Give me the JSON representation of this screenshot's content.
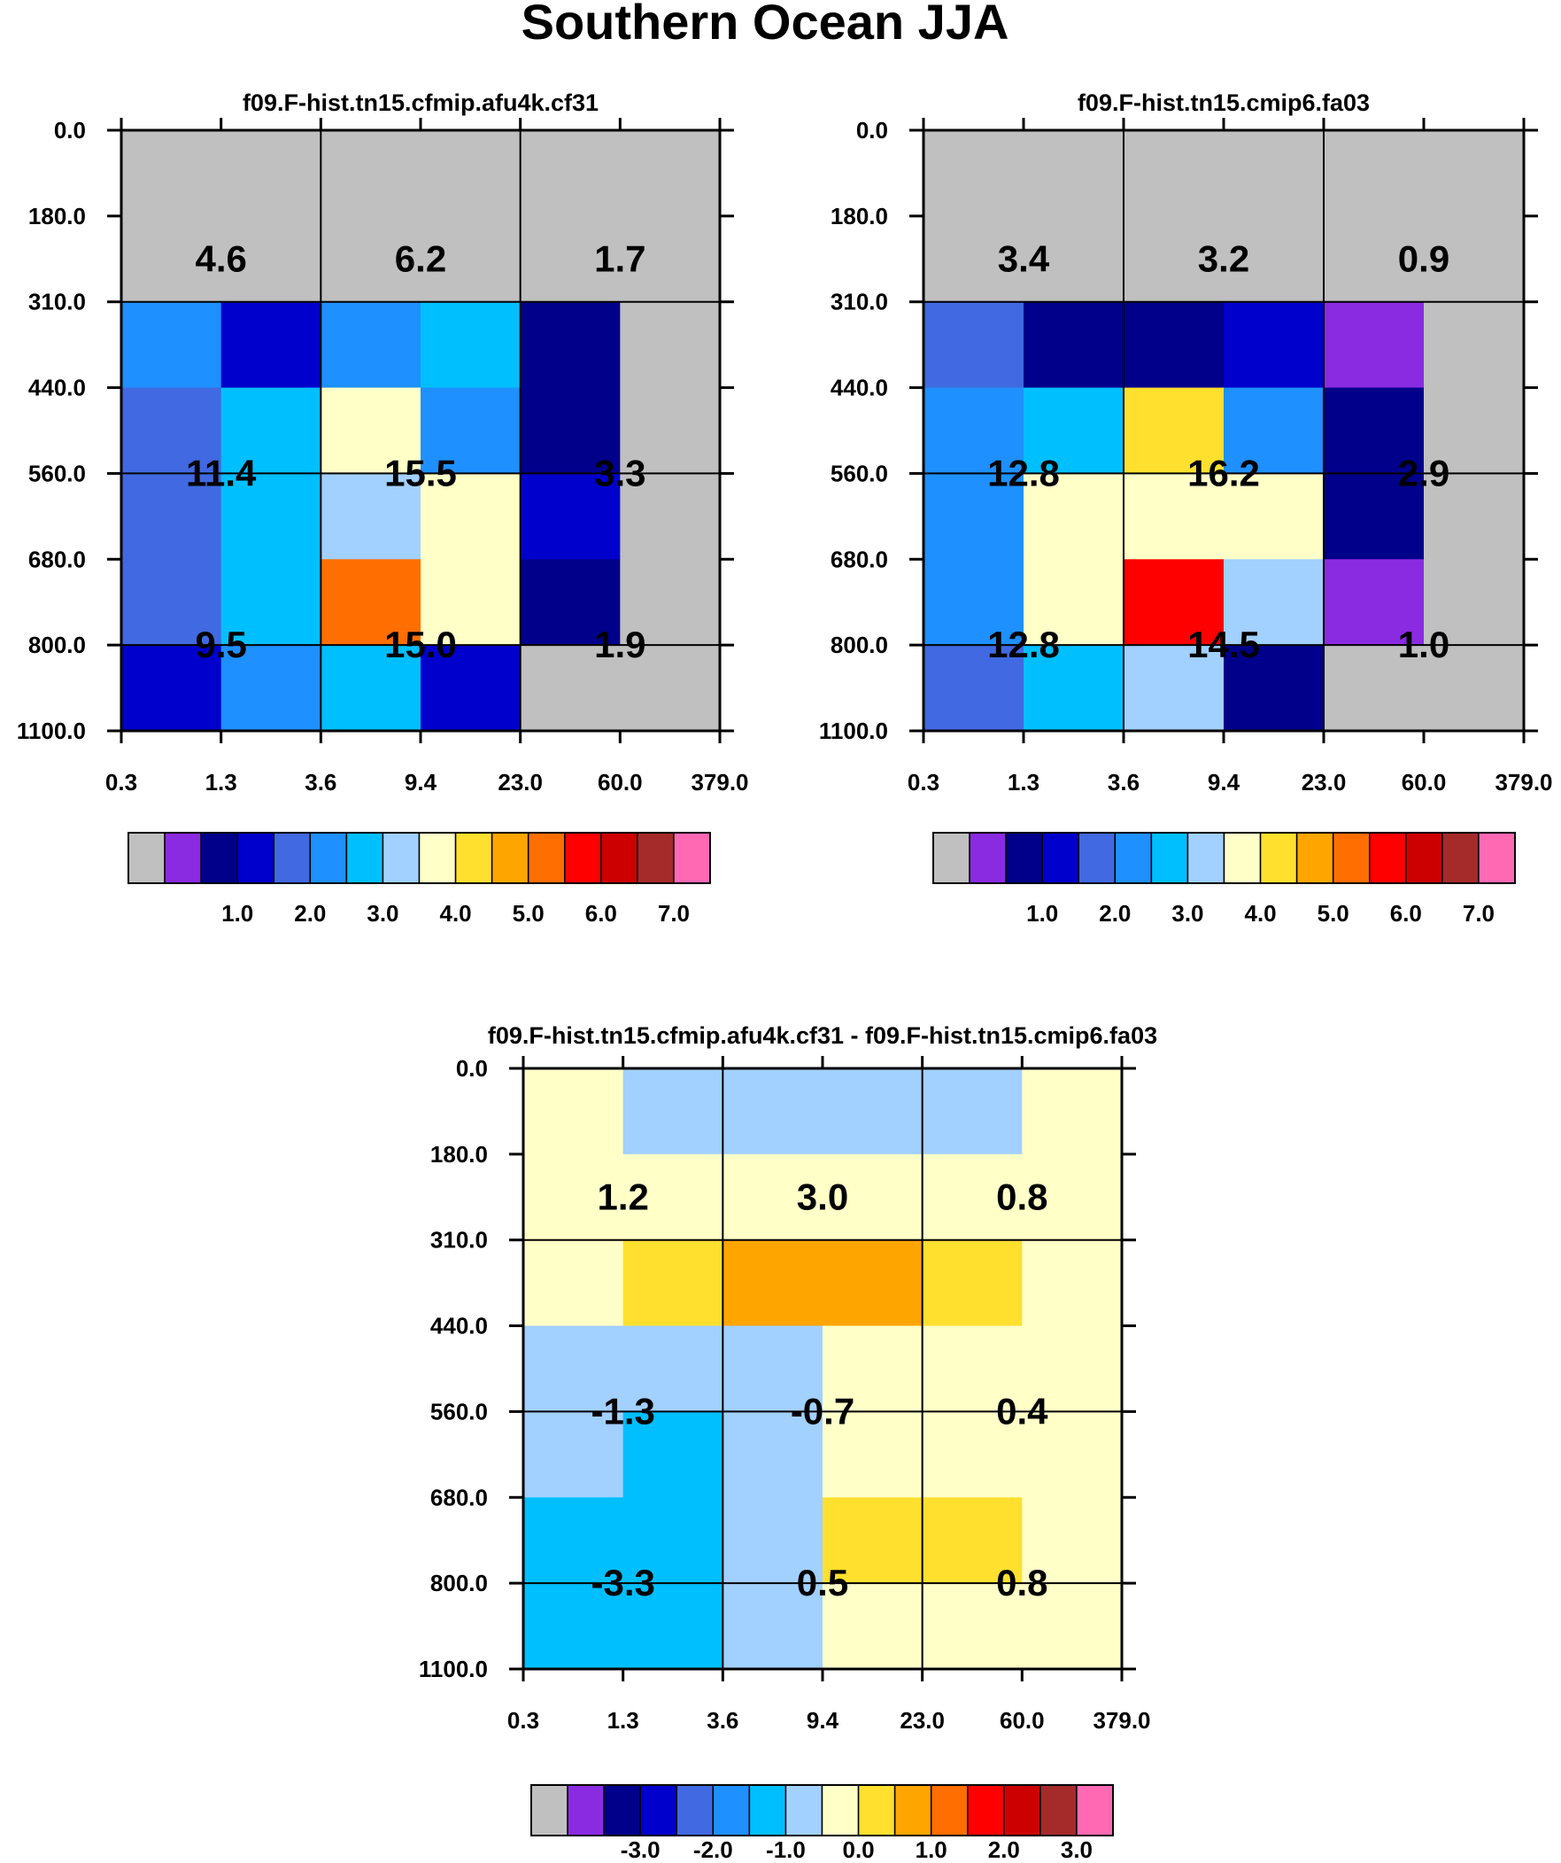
{
  "title": "Southern Ocean JJA",
  "colors": [
    "#c0c0c0",
    "#8a2be2",
    "#00008b",
    "#0000cd",
    "#4169e1",
    "#1e90ff",
    "#00bfff",
    "#a2d0ff",
    "#ffffc8",
    "#ffe02e",
    "#ffa500",
    "#ff6e00",
    "#ff0000",
    "#cd0000",
    "#a52a2a",
    "#ff69b4"
  ],
  "chart_data": [
    {
      "type": "heatmap",
      "title": "f09.F-hist.tn15.cfmip.afu4k.cf31",
      "x_ticks": [
        "0.3",
        "1.3",
        "3.6",
        "9.4",
        "23.0",
        "60.0",
        "379.0"
      ],
      "y_ticks": [
        "0.0",
        "180.0",
        "310.0",
        "440.0",
        "560.0",
        "680.0",
        "800.0",
        "1100.0"
      ],
      "cells": [
        [
          0,
          0,
          0,
          0,
          0,
          0
        ],
        [
          0,
          0,
          0,
          0,
          0,
          0
        ],
        [
          5,
          3,
          5,
          6,
          2,
          0
        ],
        [
          4,
          6,
          8,
          5,
          2,
          0
        ],
        [
          4,
          6,
          7,
          8,
          3,
          0
        ],
        [
          4,
          6,
          11,
          8,
          2,
          0
        ],
        [
          3,
          5,
          6,
          3,
          0,
          0
        ]
      ],
      "summary": [
        "4.6",
        "6.2",
        "1.7",
        "11.4",
        "15.5",
        "3.3",
        "9.5",
        "15.0",
        "1.9"
      ],
      "colorbar": {
        "labels": [
          "1.0",
          "2.0",
          "3.0",
          "4.0",
          "5.0",
          "6.0",
          "7.0"
        ]
      }
    },
    {
      "type": "heatmap",
      "title": "f09.F-hist.tn15.cmip6.fa03",
      "x_ticks": [
        "0.3",
        "1.3",
        "3.6",
        "9.4",
        "23.0",
        "60.0",
        "379.0"
      ],
      "y_ticks": [
        "0.0",
        "180.0",
        "310.0",
        "440.0",
        "560.0",
        "680.0",
        "800.0",
        "1100.0"
      ],
      "cells": [
        [
          0,
          0,
          0,
          0,
          0,
          0
        ],
        [
          0,
          0,
          0,
          0,
          0,
          0
        ],
        [
          4,
          2,
          2,
          3,
          1,
          0
        ],
        [
          5,
          6,
          9,
          5,
          2,
          0
        ],
        [
          5,
          8,
          8,
          8,
          2,
          0
        ],
        [
          5,
          8,
          12,
          7,
          1,
          0
        ],
        [
          4,
          6,
          7,
          2,
          0,
          0
        ]
      ],
      "summary": [
        "3.4",
        "3.2",
        "0.9",
        "12.8",
        "16.2",
        "2.9",
        "12.8",
        "14.5",
        "1.0"
      ],
      "colorbar": {
        "labels": [
          "1.0",
          "2.0",
          "3.0",
          "4.0",
          "5.0",
          "6.0",
          "7.0"
        ]
      }
    },
    {
      "type": "heatmap",
      "title": "f09.F-hist.tn15.cfmip.afu4k.cf31 - f09.F-hist.tn15.cmip6.fa03",
      "x_ticks": [
        "0.3",
        "1.3",
        "3.6",
        "9.4",
        "23.0",
        "60.0",
        "379.0"
      ],
      "y_ticks": [
        "0.0",
        "180.0",
        "310.0",
        "440.0",
        "560.0",
        "680.0",
        "800.0",
        "1100.0"
      ],
      "cells": [
        [
          8,
          7,
          7,
          7,
          7,
          8
        ],
        [
          8,
          8,
          8,
          8,
          8,
          8
        ],
        [
          8,
          9,
          10,
          10,
          9,
          8
        ],
        [
          7,
          7,
          7,
          8,
          8,
          8
        ],
        [
          7,
          6,
          7,
          8,
          8,
          8
        ],
        [
          6,
          6,
          7,
          9,
          9,
          8
        ],
        [
          6,
          6,
          7,
          8,
          8,
          8
        ]
      ],
      "summary": [
        "1.2",
        "3.0",
        "0.8",
        "-1.3",
        "-0.7",
        "0.4",
        "-3.3",
        "0.5",
        "0.8"
      ],
      "colorbar": {
        "labels": [
          "-3.0",
          "-2.0",
          "-1.0",
          "0.0",
          "1.0",
          "2.0",
          "3.0"
        ]
      }
    }
  ]
}
